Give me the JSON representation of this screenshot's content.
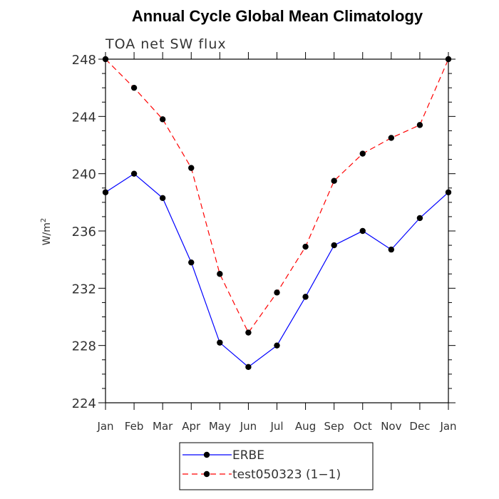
{
  "chart_data": {
    "type": "line",
    "title": "Annual Cycle Global Mean Climatology",
    "subtitle": "TOA net SW flux",
    "ylabel": "W/m",
    "ylabel_superscript": "2",
    "categories": [
      "Jan",
      "Feb",
      "Mar",
      "Apr",
      "May",
      "Jun",
      "Jul",
      "Aug",
      "Sep",
      "Oct",
      "Nov",
      "Dec",
      "Jan"
    ],
    "ylim": [
      224,
      248
    ],
    "yticks": [
      224,
      228,
      232,
      236,
      240,
      244,
      248
    ],
    "series": [
      {
        "name": "ERBE",
        "color": "#0000ff",
        "dash": "solid",
        "values": [
          238.7,
          240.0,
          238.3,
          233.8,
          228.2,
          226.5,
          228.0,
          231.4,
          235.0,
          236.0,
          234.7,
          236.9,
          238.7
        ]
      },
      {
        "name": "test050323 (1−1)",
        "color": "#ff0000",
        "dash": "dashed",
        "values": [
          248.0,
          246.0,
          243.8,
          240.4,
          233.0,
          228.9,
          231.7,
          234.9,
          239.5,
          241.4,
          242.5,
          243.4,
          248.0
        ]
      }
    ]
  }
}
